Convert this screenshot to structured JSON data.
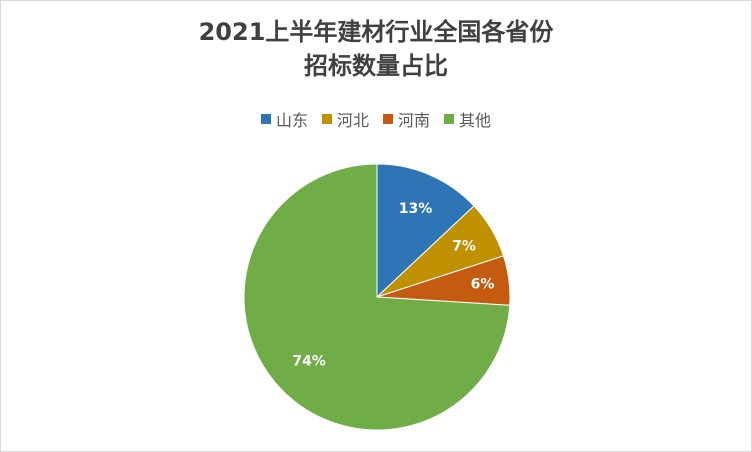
{
  "chart_data": {
    "type": "pie",
    "title_line1": "2021上半年建材行业全国各省份",
    "title_line2": "招标数量占比",
    "categories": [
      "山东",
      "河北",
      "河南",
      "其他"
    ],
    "values": [
      13,
      7,
      6,
      74
    ],
    "labels": [
      "13%",
      "7%",
      "6%",
      "74%"
    ],
    "colors": [
      "#2e75b6",
      "#bf9000",
      "#c55a11",
      "#70ad47"
    ],
    "legend_position": "top",
    "start_angle": "12 o'clock",
    "direction": "clockwise"
  }
}
